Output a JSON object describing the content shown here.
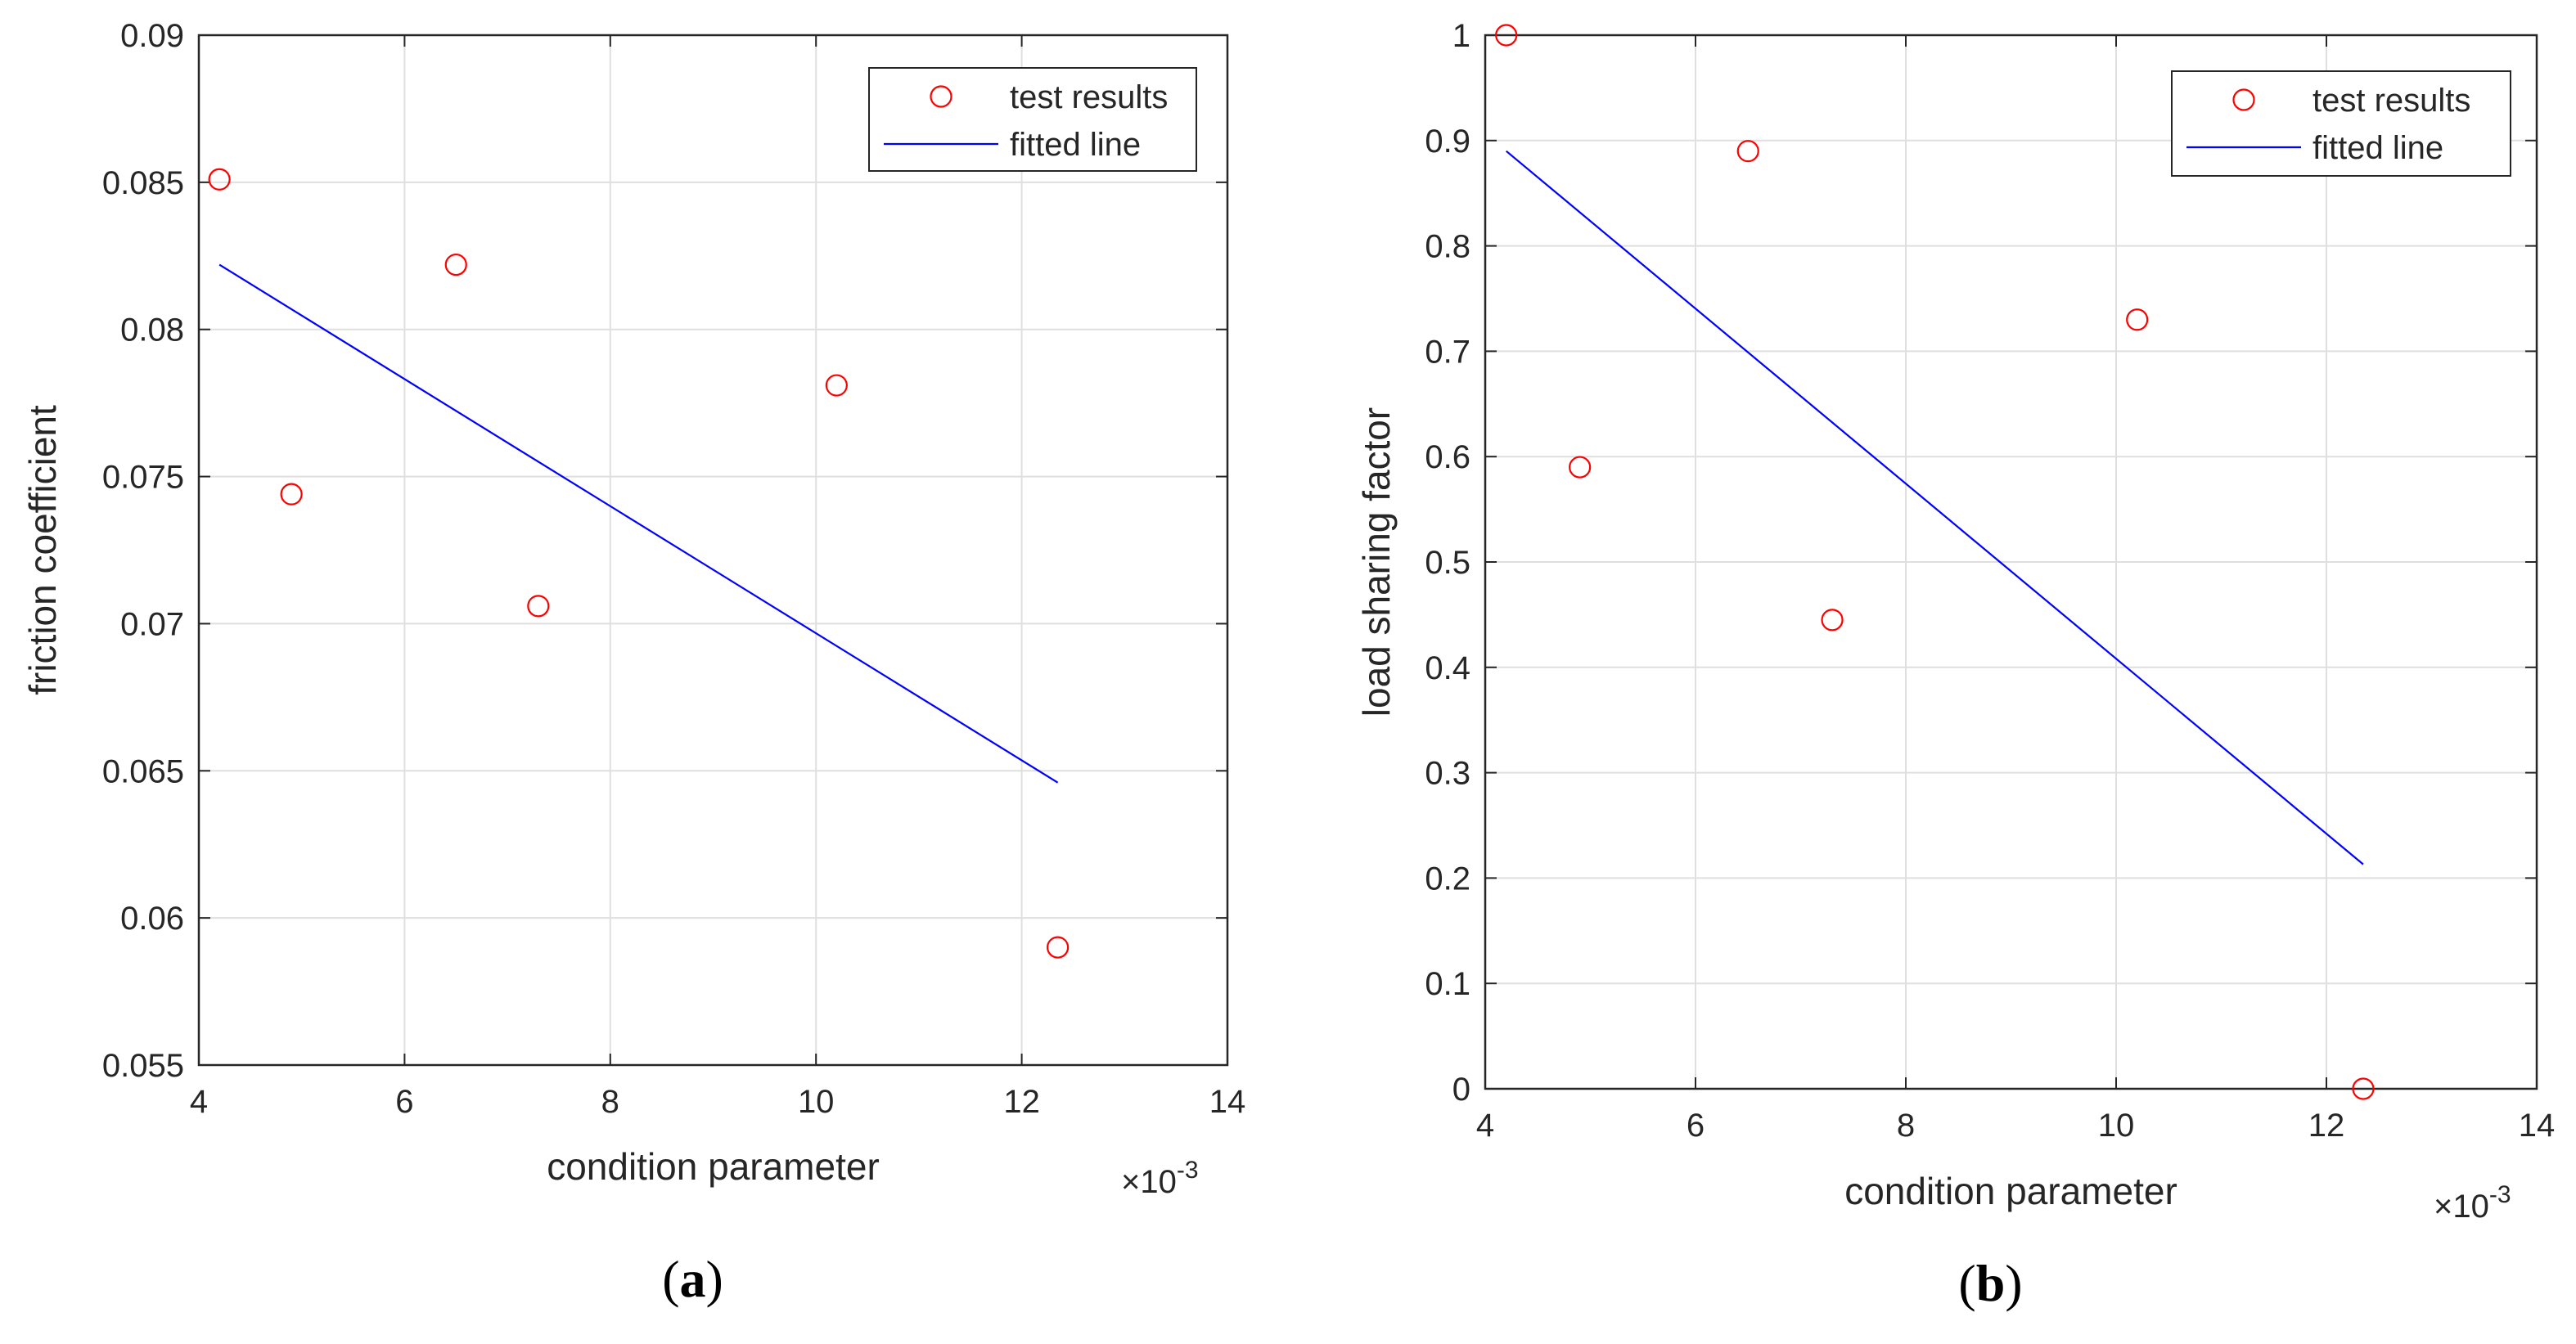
{
  "chart_data": [
    {
      "type": "scatter",
      "panel_id": "a",
      "caption": {
        "open": "(",
        "letter": "a",
        "close": ")"
      },
      "xlabel": "condition parameter",
      "ylabel": "friction coefficient",
      "x_multiplier": "×10",
      "x_exponent": "-3",
      "xlim": [
        4,
        14
      ],
      "ylim": [
        0.055,
        0.09
      ],
      "xticks": [
        4,
        6,
        8,
        10,
        12,
        14
      ],
      "xtick_labels": [
        "4",
        "6",
        "8",
        "10",
        "12",
        "14"
      ],
      "yticks": [
        0.055,
        0.06,
        0.065,
        0.07,
        0.075,
        0.08,
        0.085,
        0.09
      ],
      "ytick_labels": [
        "0.055",
        "0.06",
        "0.065",
        "0.07",
        "0.075",
        "0.08",
        "0.085",
        "0.09"
      ],
      "grid": true,
      "legend_position": "top-right",
      "series": [
        {
          "name": "test results",
          "kind": "markers",
          "color": "#ff0000",
          "x": [
            4.2,
            4.9,
            6.5,
            7.3,
            10.2,
            12.35
          ],
          "y": [
            0.0851,
            0.0744,
            0.0822,
            0.0706,
            0.0781,
            0.059
          ]
        },
        {
          "name": "fitted line",
          "kind": "line",
          "color": "#0000ff",
          "x": [
            4.2,
            12.35
          ],
          "y": [
            0.0822,
            0.0646
          ]
        }
      ]
    },
    {
      "type": "scatter",
      "panel_id": "b",
      "caption": {
        "open": "(",
        "letter": "b",
        "close": ")"
      },
      "xlabel": "condition parameter",
      "ylabel": "load sharing factor",
      "x_multiplier": "×10",
      "x_exponent": "-3",
      "xlim": [
        4,
        14
      ],
      "ylim": [
        0,
        1
      ],
      "xticks": [
        4,
        6,
        8,
        10,
        12,
        14
      ],
      "xtick_labels": [
        "4",
        "6",
        "8",
        "10",
        "12",
        "14"
      ],
      "yticks": [
        0,
        0.1,
        0.2,
        0.3,
        0.4,
        0.5,
        0.6,
        0.7,
        0.8,
        0.9,
        1
      ],
      "ytick_labels": [
        "0",
        "0.1",
        "0.2",
        "0.3",
        "0.4",
        "0.5",
        "0.6",
        "0.7",
        "0.8",
        "0.9",
        "1"
      ],
      "grid": true,
      "legend_position": "top-right",
      "series": [
        {
          "name": "test results",
          "kind": "markers",
          "color": "#ff0000",
          "x": [
            4.2,
            4.9,
            6.5,
            7.3,
            10.2,
            12.35
          ],
          "y": [
            1.0,
            0.59,
            0.89,
            0.445,
            0.73,
            0.0
          ]
        },
        {
          "name": "fitted line",
          "kind": "line",
          "color": "#0000ff",
          "x": [
            4.2,
            12.35
          ],
          "y": [
            0.89,
            0.213
          ]
        }
      ]
    }
  ]
}
